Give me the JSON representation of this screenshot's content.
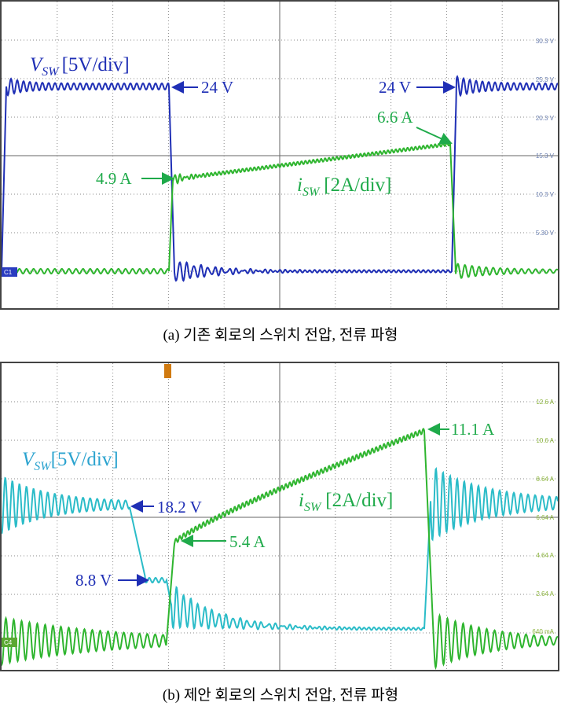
{
  "panel_a": {
    "scale_labels": [
      "30.3 V",
      "25.3 V",
      "20.3 V",
      "15.3 V",
      "10.3 V",
      "5.30 V"
    ],
    "channel": "C1",
    "voltage_label": {
      "symbol": "V",
      "subscript": "SW",
      "scale": "[5V/div]"
    },
    "current_label": {
      "symbol": "i",
      "subscript": "SW",
      "scale": "[2A/div]"
    },
    "annotations": [
      "24 V",
      "24 V",
      "6.6 A",
      "4.9 A"
    ],
    "caption": "(a) 기존 회로의 스위치 전압, 전류 파형"
  },
  "panel_b": {
    "scale_labels": [
      "12.6 A",
      "10.6 A",
      "8.64 A",
      "6.64 A",
      "4.64 A",
      "2.64 A",
      "640 mA"
    ],
    "channel": "C4",
    "voltage_label": {
      "symbol": "V",
      "subscript": "SW",
      "scale": "[5V/div]"
    },
    "current_label": {
      "symbol": "i",
      "subscript": "SW",
      "scale": "[2A/div]"
    },
    "annotations": [
      "18.2 V",
      "8.8 V",
      "5.4 A",
      "11.1 A"
    ],
    "caption": "(b) 제안 회로의 스위치 전압, 전류 파형"
  }
}
